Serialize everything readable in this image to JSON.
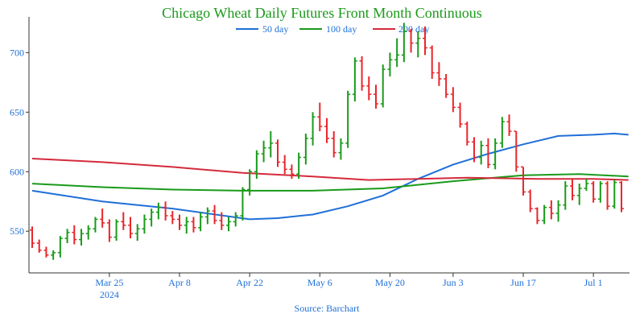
{
  "chart_data": {
    "type": "ohlc",
    "title": "Chicago Wheat Daily Futures Front Month Continuous",
    "source": "Source: Barchart",
    "xlabel": "",
    "ylabel": "",
    "ylim": [
      515,
      730
    ],
    "y_ticks": [
      550,
      600,
      650,
      700
    ],
    "x_ticks": [
      {
        "index": 11,
        "label": "Mar 25",
        "sublabel": "2024"
      },
      {
        "index": 21,
        "label": "Apr 8",
        "sublabel": ""
      },
      {
        "index": 31,
        "label": "Apr 22",
        "sublabel": ""
      },
      {
        "index": 41,
        "label": "May 6",
        "sublabel": ""
      },
      {
        "index": 51,
        "label": "May 20",
        "sublabel": ""
      },
      {
        "index": 60,
        "label": "Jun 3",
        "sublabel": ""
      },
      {
        "index": 70,
        "label": "Jun 17",
        "sublabel": ""
      },
      {
        "index": 80,
        "label": "Jul 1",
        "sublabel": ""
      }
    ],
    "x_count": 85,
    "grid": false,
    "legend": {
      "placement": "top-center",
      "entries": [
        {
          "name": "50 day",
          "color": "#1f6fd8"
        },
        {
          "name": "100 day",
          "color": "#1a9a1a"
        },
        {
          "name": "200 day",
          "color": "#d42a3c"
        }
      ]
    },
    "colors": {
      "up": "#1a9a1a",
      "down": "#e8262b",
      "title": "#1a9a1a",
      "axis_text": "#1f6fd8",
      "source": "#1f6fd8"
    },
    "ohlc": [
      [
        551,
        554,
        536,
        540
      ],
      [
        540,
        543,
        532,
        534
      ],
      [
        534,
        537,
        528,
        530
      ],
      [
        530,
        534,
        526,
        532
      ],
      [
        532,
        546,
        528,
        544
      ],
      [
        544,
        552,
        540,
        549
      ],
      [
        549,
        555,
        539,
        543
      ],
      [
        543,
        552,
        538,
        548
      ],
      [
        548,
        555,
        543,
        552
      ],
      [
        552,
        562,
        549,
        560
      ],
      [
        560,
        569,
        553,
        557
      ],
      [
        557,
        560,
        541,
        545
      ],
      [
        545,
        560,
        542,
        558
      ],
      [
        558,
        566,
        551,
        555
      ],
      [
        555,
        562,
        544,
        548
      ],
      [
        548,
        556,
        542,
        552
      ],
      [
        552,
        564,
        548,
        560
      ],
      [
        560,
        569,
        554,
        566
      ],
      [
        566,
        574,
        560,
        570
      ],
      [
        570,
        575,
        559,
        563
      ],
      [
        563,
        567,
        556,
        560
      ],
      [
        560,
        564,
        551,
        555
      ],
      [
        555,
        562,
        548,
        558
      ],
      [
        558,
        562,
        549,
        553
      ],
      [
        553,
        566,
        550,
        562
      ],
      [
        562,
        570,
        556,
        567
      ],
      [
        567,
        572,
        556,
        559
      ],
      [
        559,
        566,
        551,
        555
      ],
      [
        555,
        562,
        550,
        558
      ],
      [
        558,
        566,
        554,
        563
      ],
      [
        563,
        587,
        559,
        585
      ],
      [
        585,
        602,
        580,
        600
      ],
      [
        600,
        618,
        594,
        615
      ],
      [
        615,
        626,
        608,
        620
      ],
      [
        620,
        634,
        612,
        624
      ],
      [
        624,
        627,
        604,
        608
      ],
      [
        608,
        614,
        598,
        602
      ],
      [
        602,
        606,
        594,
        598
      ],
      [
        598,
        616,
        594,
        612
      ],
      [
        612,
        632,
        606,
        628
      ],
      [
        628,
        650,
        622,
        646
      ],
      [
        646,
        658,
        634,
        638
      ],
      [
        638,
        645,
        624,
        628
      ],
      [
        628,
        634,
        612,
        616
      ],
      [
        616,
        628,
        610,
        624
      ],
      [
        624,
        668,
        620,
        665
      ],
      [
        665,
        696,
        659,
        693
      ],
      [
        693,
        697,
        668,
        672
      ],
      [
        672,
        680,
        660,
        665
      ],
      [
        665,
        673,
        653,
        657
      ],
      [
        657,
        690,
        654,
        686
      ],
      [
        686,
        700,
        680,
        694
      ],
      [
        694,
        712,
        688,
        698
      ],
      [
        698,
        725,
        692,
        718
      ],
      [
        718,
        720,
        700,
        708
      ],
      [
        708,
        718,
        696,
        712
      ],
      [
        712,
        722,
        698,
        704
      ],
      [
        704,
        706,
        678,
        683
      ],
      [
        683,
        692,
        672,
        678
      ],
      [
        678,
        682,
        662,
        665
      ],
      [
        665,
        671,
        650,
        654
      ],
      [
        654,
        658,
        637,
        640
      ],
      [
        640,
        642,
        622,
        625
      ],
      [
        625,
        629,
        608,
        612
      ],
      [
        612,
        626,
        606,
        622
      ],
      [
        622,
        628,
        603,
        606
      ],
      [
        606,
        628,
        602,
        624
      ],
      [
        624,
        646,
        620,
        642
      ],
      [
        642,
        648,
        630,
        634
      ],
      [
        634,
        634,
        600,
        604
      ],
      [
        604,
        604,
        580,
        583
      ],
      [
        583,
        585,
        566,
        569
      ],
      [
        569,
        570,
        556,
        559
      ],
      [
        559,
        572,
        556,
        570
      ],
      [
        570,
        576,
        560,
        565
      ],
      [
        565,
        576,
        558,
        572
      ],
      [
        572,
        592,
        568,
        588
      ],
      [
        588,
        594,
        576,
        580
      ],
      [
        580,
        590,
        572,
        586
      ],
      [
        586,
        594,
        584,
        590
      ],
      [
        590,
        592,
        574,
        577
      ],
      [
        577,
        592,
        574,
        590
      ],
      [
        590,
        592,
        568,
        571
      ],
      [
        571,
        593,
        569,
        591
      ],
      [
        591,
        592,
        566,
        569
      ]
    ],
    "series": [
      {
        "name": "50 day",
        "color": "#1f6fd8",
        "points": [
          [
            0,
            584
          ],
          [
            10,
            575
          ],
          [
            20,
            569
          ],
          [
            31,
            560
          ],
          [
            35,
            561
          ],
          [
            40,
            564
          ],
          [
            45,
            571
          ],
          [
            50,
            580
          ],
          [
            55,
            594
          ],
          [
            60,
            606
          ],
          [
            65,
            615
          ],
          [
            70,
            623
          ],
          [
            75,
            630
          ],
          [
            80,
            631
          ],
          [
            83,
            632
          ],
          [
            85,
            631
          ]
        ]
      },
      {
        "name": "100 day",
        "color": "#1a9a1a",
        "points": [
          [
            0,
            590
          ],
          [
            10,
            587
          ],
          [
            20,
            585
          ],
          [
            30,
            584
          ],
          [
            40,
            584
          ],
          [
            50,
            586
          ],
          [
            60,
            592
          ],
          [
            70,
            597
          ],
          [
            78,
            598
          ],
          [
            85,
            596
          ]
        ]
      },
      {
        "name": "200 day",
        "color": "#d42a3c",
        "points": [
          [
            0,
            611
          ],
          [
            10,
            608
          ],
          [
            20,
            604
          ],
          [
            30,
            599
          ],
          [
            40,
            596
          ],
          [
            48,
            593
          ],
          [
            55,
            594
          ],
          [
            62,
            595
          ],
          [
            72,
            594
          ],
          [
            80,
            594
          ],
          [
            85,
            593
          ]
        ]
      }
    ]
  }
}
